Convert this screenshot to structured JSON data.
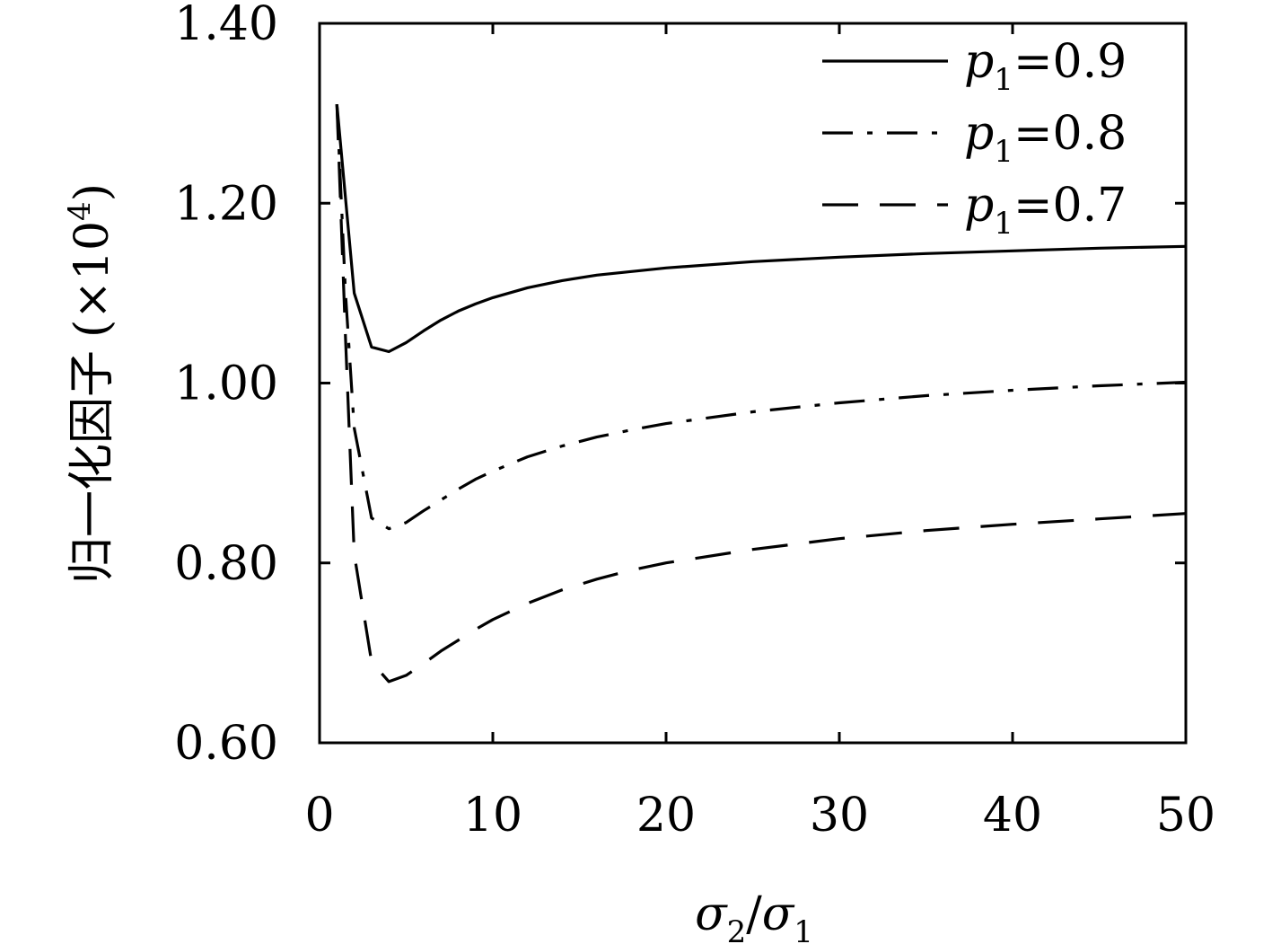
{
  "chart_data": {
    "type": "line",
    "xlabel": {
      "base": "σ",
      "sub1": "2",
      "slash": "/",
      "base2": "σ",
      "sub2": "1"
    },
    "ylabel": {
      "text": "归一化因子",
      "paren_open": "(",
      "times": "×10",
      "sup": "4",
      "paren_close": ")"
    },
    "xlim": [
      0,
      50
    ],
    "ylim": [
      0.6,
      1.4
    ],
    "x_ticks": [
      "0",
      "10",
      "20",
      "30",
      "40",
      "50"
    ],
    "y_ticks": [
      "0.60",
      "0.80",
      "1.00",
      "1.20",
      "1.40"
    ],
    "grid": false,
    "legend_position": "top-right",
    "series": [
      {
        "name": "p1=0.9",
        "legend": {
          "var": "p",
          "sub": "1",
          "rest": "=0.9"
        },
        "style": "solid",
        "x": [
          1,
          2,
          3,
          4,
          5,
          6,
          7,
          8,
          9,
          10,
          12,
          14,
          16,
          18,
          20,
          25,
          30,
          35,
          40,
          45,
          50
        ],
        "y": [
          1.31,
          1.1,
          1.04,
          1.035,
          1.045,
          1.058,
          1.07,
          1.08,
          1.088,
          1.095,
          1.106,
          1.114,
          1.12,
          1.124,
          1.128,
          1.135,
          1.14,
          1.144,
          1.147,
          1.15,
          1.152
        ]
      },
      {
        "name": "p1=0.8",
        "legend": {
          "var": "p",
          "sub": "1",
          "rest": "=0.8"
        },
        "style": "dashdot",
        "x": [
          1,
          1.5,
          2,
          3,
          4,
          5,
          6,
          7,
          8,
          9,
          10,
          12,
          14,
          16,
          18,
          20,
          25,
          30,
          35,
          40,
          45,
          50
        ],
        "y": [
          1.31,
          1.1,
          0.95,
          0.85,
          0.838,
          0.845,
          0.858,
          0.87,
          0.882,
          0.893,
          0.902,
          0.918,
          0.93,
          0.94,
          0.948,
          0.955,
          0.968,
          0.978,
          0.986,
          0.992,
          0.997,
          1.001
        ]
      },
      {
        "name": "p1=0.7",
        "legend": {
          "var": "p",
          "sub": "1",
          "rest": "=0.7"
        },
        "style": "dashed",
        "x": [
          1,
          1.5,
          2,
          3,
          4,
          5,
          6,
          7,
          8,
          9,
          10,
          12,
          14,
          16,
          18,
          20,
          25,
          30,
          35,
          40,
          45,
          50
        ],
        "y": [
          1.31,
          1.05,
          0.81,
          0.69,
          0.668,
          0.675,
          0.688,
          0.702,
          0.714,
          0.726,
          0.737,
          0.755,
          0.77,
          0.782,
          0.792,
          0.8,
          0.815,
          0.827,
          0.836,
          0.843,
          0.849,
          0.855
        ]
      }
    ]
  }
}
